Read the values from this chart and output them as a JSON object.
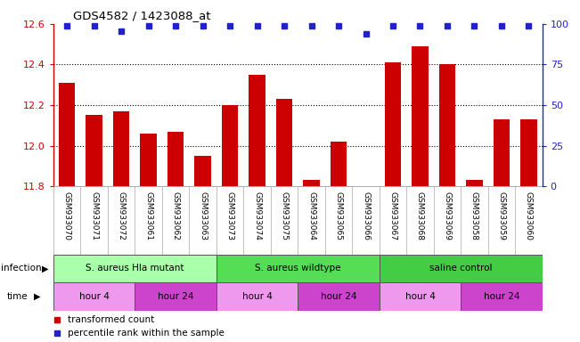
{
  "title": "GDS4582 / 1423088_at",
  "samples": [
    "GSM933070",
    "GSM933071",
    "GSM933072",
    "GSM933061",
    "GSM933062",
    "GSM933063",
    "GSM933073",
    "GSM933074",
    "GSM933075",
    "GSM933064",
    "GSM933065",
    "GSM933066",
    "GSM933067",
    "GSM933068",
    "GSM933069",
    "GSM933058",
    "GSM933059",
    "GSM933060"
  ],
  "bar_values": [
    12.31,
    12.15,
    12.17,
    12.06,
    12.07,
    11.95,
    12.2,
    12.35,
    12.23,
    11.83,
    12.02,
    11.8,
    12.41,
    12.49,
    12.4,
    11.83,
    12.13,
    12.13
  ],
  "percentile_values": [
    100,
    100,
    97,
    100,
    100,
    100,
    100,
    100,
    100,
    100,
    100,
    95,
    100,
    100,
    100,
    100,
    100,
    100
  ],
  "bar_color": "#CC0000",
  "percentile_color": "#2222CC",
  "ylim_left": [
    11.8,
    12.6
  ],
  "ylim_right": [
    0,
    100
  ],
  "yticks_left": [
    11.8,
    12.0,
    12.2,
    12.4,
    12.6
  ],
  "yticks_right": [
    0,
    25,
    50,
    75,
    100
  ],
  "left_axis_color": "#CC0000",
  "right_axis_color": "#2222CC",
  "infection_labels": [
    {
      "text": "S. aureus Hla mutant",
      "start": 0,
      "end": 6,
      "color": "#AAFFAA"
    },
    {
      "text": "S. aureus wildtype",
      "start": 6,
      "end": 12,
      "color": "#55DD55"
    },
    {
      "text": "saline control",
      "start": 12,
      "end": 18,
      "color": "#44CC44"
    }
  ],
  "time_labels": [
    {
      "text": "hour 4",
      "start": 0,
      "end": 3,
      "color": "#EE99EE"
    },
    {
      "text": "hour 24",
      "start": 3,
      "end": 6,
      "color": "#CC44CC"
    },
    {
      "text": "hour 4",
      "start": 6,
      "end": 9,
      "color": "#EE99EE"
    },
    {
      "text": "hour 24",
      "start": 9,
      "end": 12,
      "color": "#CC44CC"
    },
    {
      "text": "hour 4",
      "start": 12,
      "end": 15,
      "color": "#EE99EE"
    },
    {
      "text": "hour 24",
      "start": 15,
      "end": 18,
      "color": "#CC44CC"
    }
  ],
  "legend_items": [
    {
      "label": "transformed count",
      "color": "#CC0000",
      "marker": "s"
    },
    {
      "label": "percentile rank within the sample",
      "color": "#2222CC",
      "marker": "s"
    }
  ],
  "bg_color": "#FFFFFF",
  "plot_bg_color": "#FFFFFF",
  "grid_color": "#000000"
}
